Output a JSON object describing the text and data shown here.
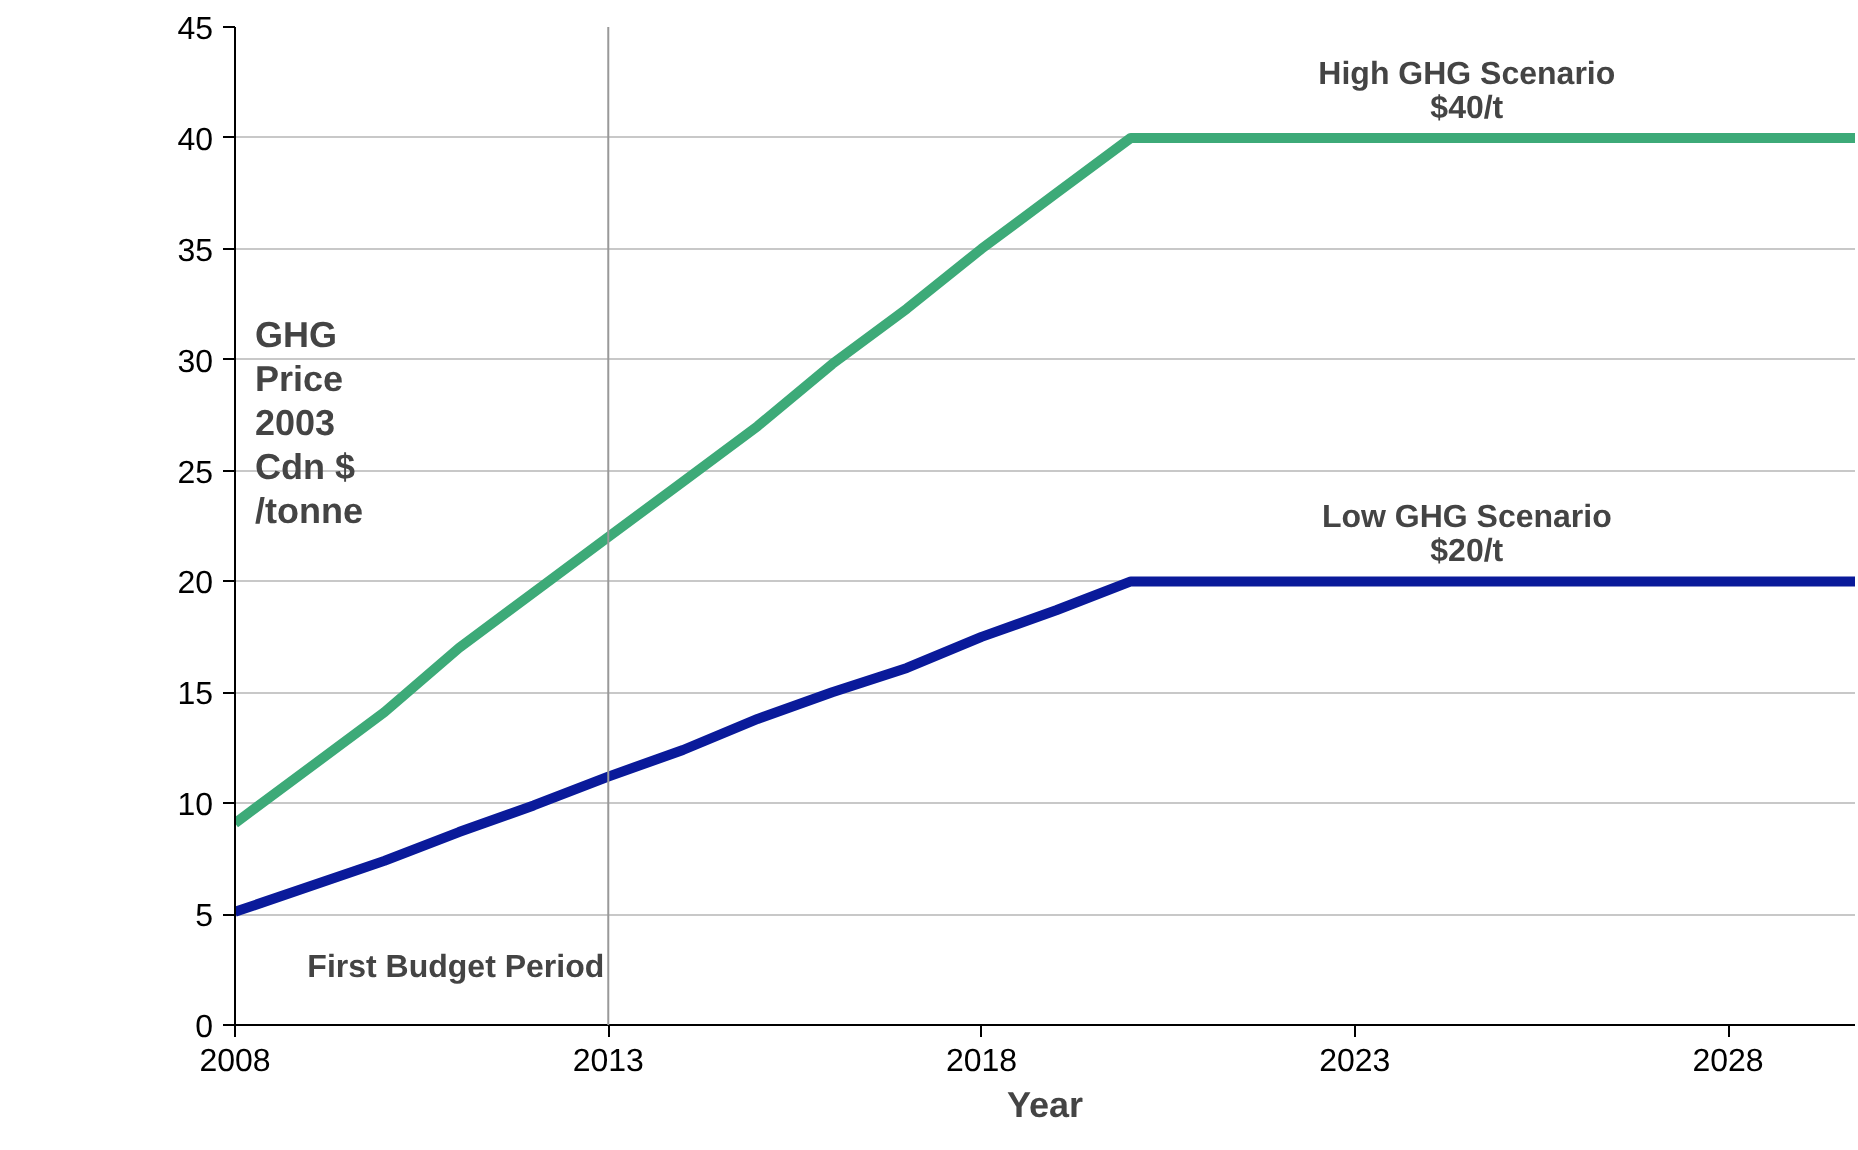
{
  "chart_data": {
    "type": "line",
    "xlabel": "Year",
    "ylabel": "GHG\nPrice\n2003\nCdn $\n/tonne",
    "x": [
      2008,
      2010,
      2011,
      2012,
      2013,
      2014,
      2015,
      2016,
      2017,
      2018,
      2019,
      2020,
      2029.7
    ],
    "series": [
      {
        "name": "High GHG Scenario\n$40/t",
        "color": "#3daa78",
        "values": [
          9.1,
          14.1,
          17,
          19.5,
          22,
          24.5,
          27,
          29.8,
          32.3,
          35,
          37.5,
          40,
          40
        ]
      },
      {
        "name": "Low GHG Scenario\n$20/t",
        "color": "#0a1a9a",
        "values": [
          5.1,
          7.4,
          8.7,
          9.9,
          11.2,
          12.4,
          13.8,
          15,
          16.1,
          17.5,
          18.7,
          20,
          20
        ]
      }
    ],
    "xlim": [
      2008,
      2029.7
    ],
    "xticks": [
      2008,
      2013,
      2018,
      2023,
      2028
    ],
    "ylim": [
      0,
      45
    ],
    "yticks": [
      0,
      5,
      10,
      15,
      20,
      25,
      30,
      35,
      40,
      45
    ],
    "ref_lines": [
      {
        "axis": "x",
        "value": 2013,
        "label": "First Budget Period",
        "color": "#999999"
      }
    ],
    "grid": "y",
    "marker": "none",
    "line_style": "solid"
  }
}
